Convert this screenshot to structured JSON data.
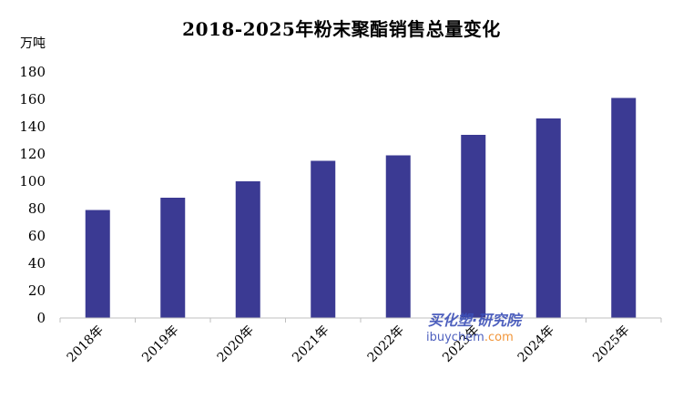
{
  "chart_data": {
    "type": "bar",
    "title": "2018-2025年粉末聚酯销售总量变化",
    "ylabel": "万吨",
    "xlabel": "",
    "categories": [
      "2018年",
      "2019年",
      "2020年",
      "2021年",
      "2022年",
      "2023年",
      "2024年",
      "2025年"
    ],
    "values": [
      79,
      88,
      100,
      115,
      119,
      134,
      146,
      161
    ],
    "yticks": [
      0,
      20,
      40,
      60,
      80,
      100,
      120,
      140,
      160,
      180
    ],
    "ylim": [
      0,
      180
    ],
    "grid": false,
    "legend": "none",
    "bar_color": "#3b3a93"
  },
  "watermark": {
    "brand": "买化塑·研究院",
    "url_prefix": "ibuychem",
    "url_suffix": ".com",
    "brand_color": "#3b4fb8",
    "url_color": "#3b4fb8",
    "accent_color": "#f08a24"
  }
}
